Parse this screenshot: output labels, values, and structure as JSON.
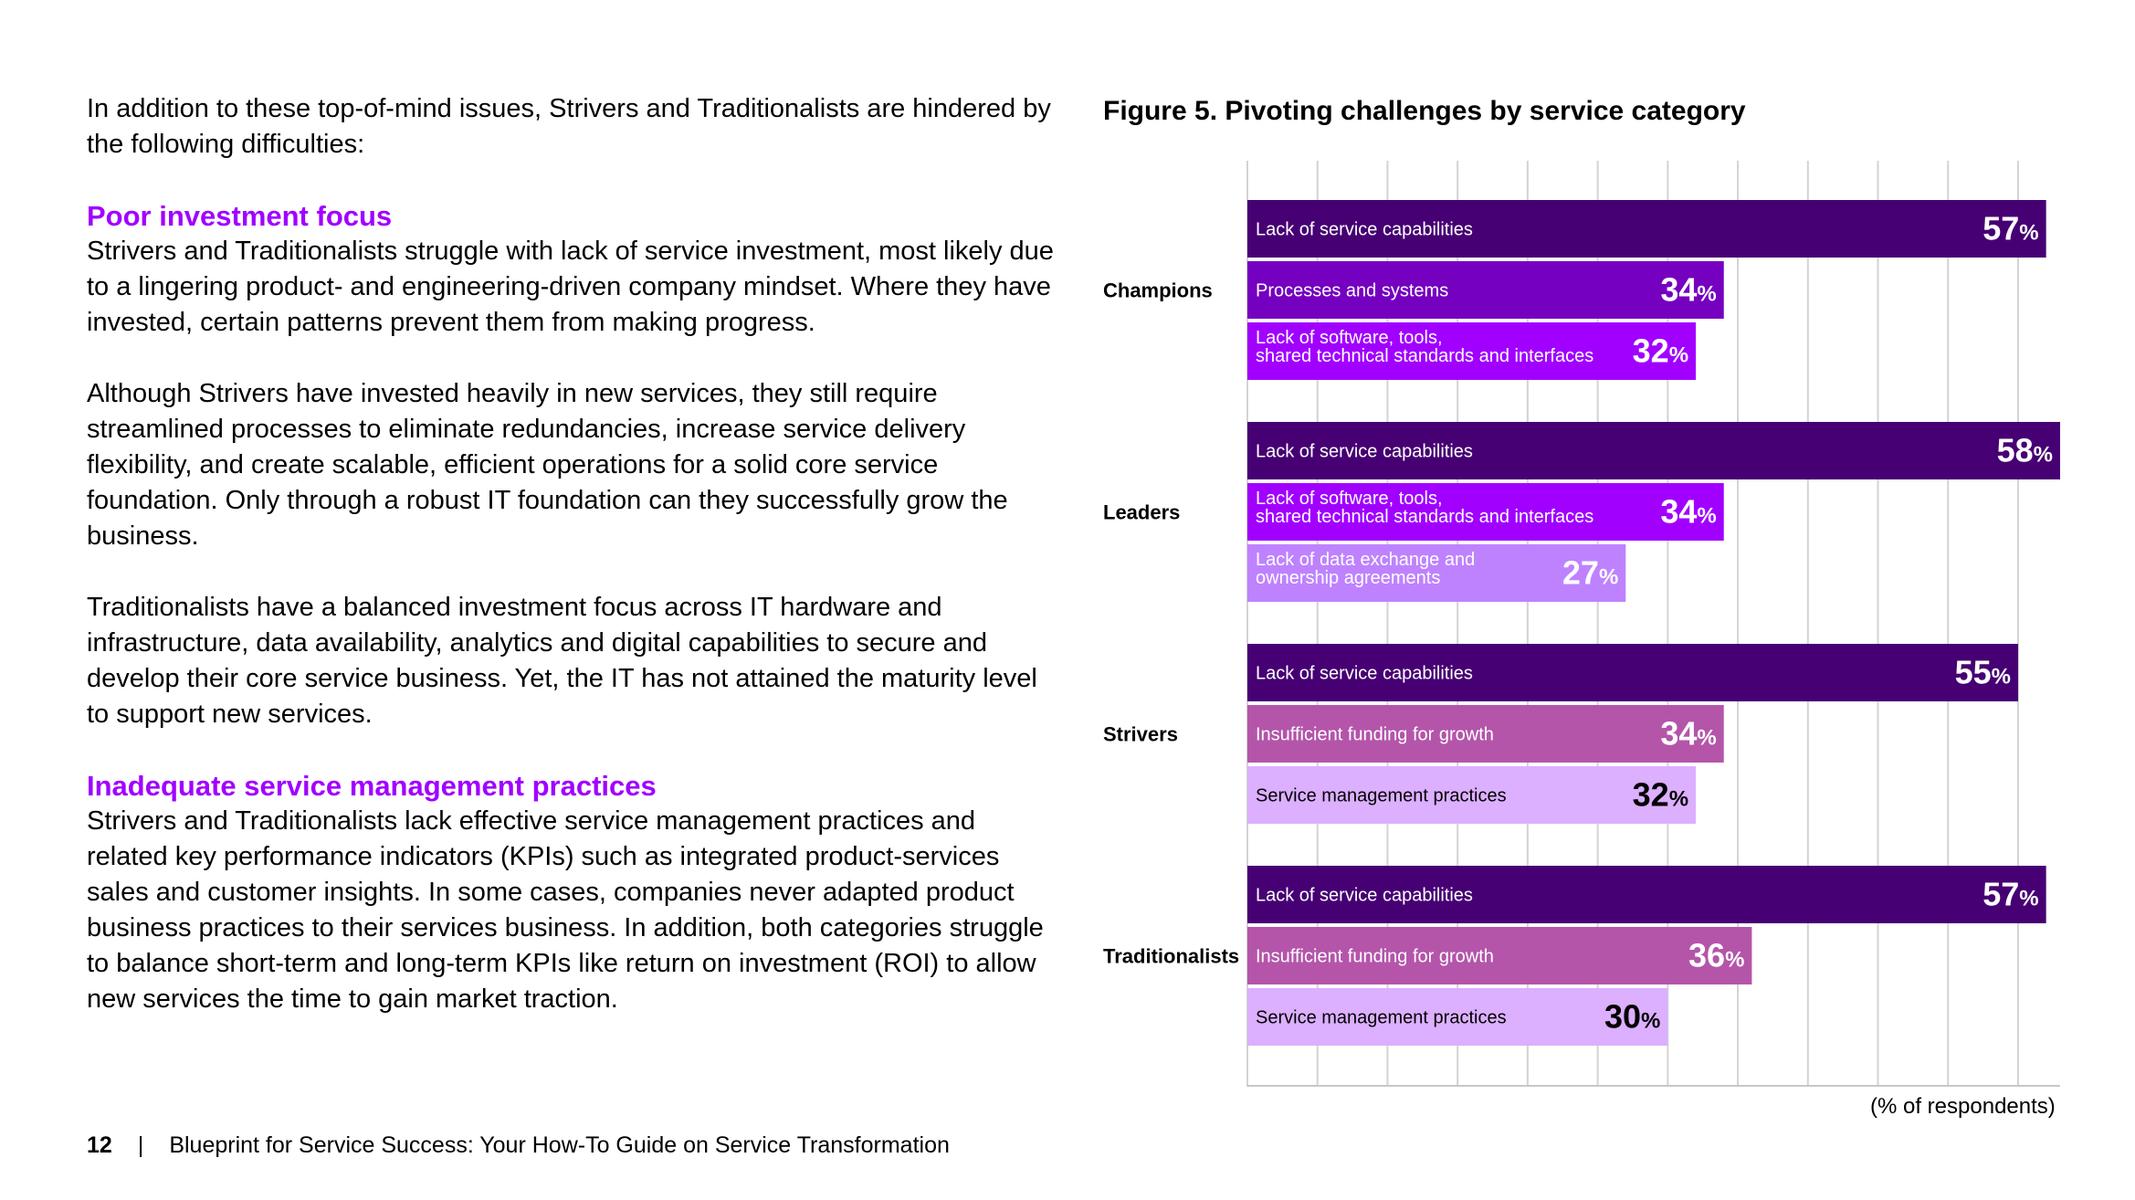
{
  "left": {
    "intro": "In addition to these top-of-mind issues, Strivers and Traditionalists are hindered by the following difficulties:",
    "section1": {
      "heading": "Poor investment focus",
      "p1": "Strivers and Traditionalists struggle with lack of service investment, most likely due to a lingering product- and engineering-driven company mindset. Where they have invested, certain patterns prevent them from making progress.",
      "p2": "Although Strivers have invested heavily in new services, they still require streamlined processes to eliminate redundancies, increase service delivery flexibility, and create scalable, efficient operations for a solid core service foundation. Only through a robust IT foundation can they successfully grow the business.",
      "p3": "Traditionalists have a balanced investment focus across IT hardware and infrastructure, data availability, analytics and digital capabilities to secure and develop their core service business. Yet, the IT has not attained the maturity level to support new services."
    },
    "section2": {
      "heading": "Inadequate service management practices",
      "p1": "Strivers and Traditionalists lack effective service management practices and related key performance indicators (KPIs) such as integrated product-services sales and customer insights. In some cases, companies never adapted product business practices to their services business. In addition, both categories struggle to balance short-term and long-term KPIs like return on investment (ROI) to allow new services the time to gain market traction."
    }
  },
  "footer": {
    "page_number": "12",
    "separator": "|",
    "doc_title": "Blueprint for Service Success: Your How-To Guide on Service Transformation"
  },
  "figure": {
    "title": "Figure 5. Pivoting challenges by service category",
    "unit_note": "(% of respondents)"
  },
  "chart_data": {
    "type": "bar",
    "orientation": "horizontal",
    "title": "Figure 5. Pivoting challenges by service category",
    "xlim": [
      0,
      58
    ],
    "grid": true,
    "value_suffix": "%",
    "groups": [
      {
        "name": "Champions",
        "bars": [
          {
            "label": "Lack of service capabilities",
            "value": 57,
            "color": "#460073"
          },
          {
            "label": "Processes and systems",
            "value": 34,
            "color": "#7500c0"
          },
          {
            "label": "Lack of software, tools, shared technical standards and interfaces",
            "value": 32,
            "color": "#a100ff"
          }
        ]
      },
      {
        "name": "Leaders",
        "bars": [
          {
            "label": "Lack of service capabilities",
            "value": 58,
            "color": "#460073"
          },
          {
            "label": "Lack of software, tools, shared technical standards and interfaces",
            "value": 34,
            "color": "#a100ff"
          },
          {
            "label": "Lack of data exchange and ownership agreements",
            "value": 27,
            "color": "#be82ff"
          }
        ]
      },
      {
        "name": "Strivers",
        "bars": [
          {
            "label": "Lack of service capabilities",
            "value": 55,
            "color": "#460073"
          },
          {
            "label": "Insufficient funding for growth",
            "value": 34,
            "color": "#b455aa"
          },
          {
            "label": "Service management practices",
            "value": 32,
            "color": "#dcafff"
          }
        ]
      },
      {
        "name": "Traditionalists",
        "bars": [
          {
            "label": "Lack of service capabilities",
            "value": 57,
            "color": "#460073"
          },
          {
            "label": "Insufficient funding for growth",
            "value": 36,
            "color": "#b455aa"
          },
          {
            "label": "Service management practices",
            "value": 30,
            "color": "#dcafff"
          }
        ]
      }
    ]
  }
}
